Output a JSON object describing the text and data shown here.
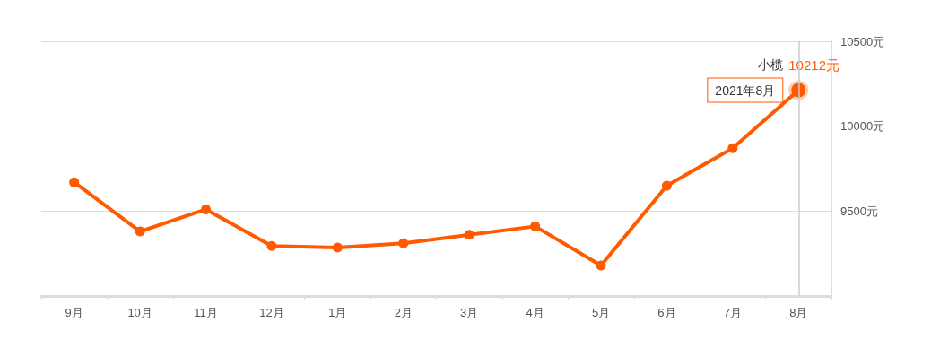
{
  "chart_data": {
    "type": "line",
    "categories": [
      "9月",
      "10月",
      "11月",
      "12月",
      "1月",
      "2月",
      "3月",
      "4月",
      "5月",
      "6月",
      "7月",
      "8月"
    ],
    "series": [
      {
        "name": "小榄",
        "color": "#ff5a00",
        "values": [
          9670,
          9380,
          9510,
          9295,
          9285,
          9310,
          9360,
          9410,
          9180,
          9650,
          9870,
          10212
        ],
        "value_labels": [
          null,
          null,
          null,
          null,
          null,
          null,
          null,
          null,
          null,
          null,
          null,
          "10212元"
        ]
      }
    ],
    "ylim": [
      9000,
      10500
    ],
    "yticks": [
      {
        "value": 9000,
        "label": null
      },
      {
        "value": 9500,
        "label": "9500元"
      },
      {
        "value": 10000,
        "label": "10000元"
      },
      {
        "value": 10500,
        "label": "10500元"
      }
    ],
    "annotations": [
      {
        "text": "2021年8月",
        "x": "8月",
        "y": 10212
      }
    ],
    "ref_lines": [
      {
        "axis": "x",
        "value": "8月",
        "color": "#cccccc"
      }
    ],
    "grid": "y",
    "legend": false,
    "marker": "circle",
    "line_style": "solid"
  }
}
